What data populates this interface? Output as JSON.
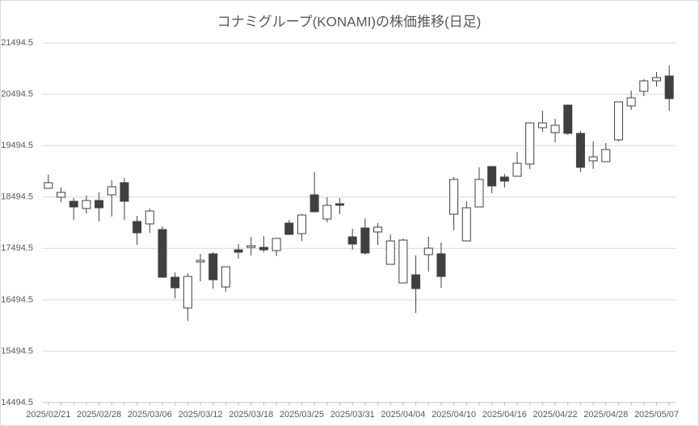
{
  "chart_data": {
    "type": "candlestick",
    "title": "コナミグループ(KONAMI)の株価推移(日足)",
    "categories": [
      "2025/02/21",
      null,
      null,
      null,
      "2025/02/28",
      null,
      null,
      null,
      "2025/03/06",
      null,
      null,
      null,
      "2025/03/12",
      null,
      null,
      null,
      "2025/03/18",
      null,
      null,
      null,
      "2025/03/25",
      null,
      null,
      null,
      "2025/03/31",
      null,
      null,
      null,
      "2025/04/04",
      null,
      null,
      null,
      "2025/04/10",
      null,
      null,
      null,
      "2025/04/16",
      null,
      null,
      null,
      "2025/04/22",
      null,
      null,
      null,
      "2025/04/28",
      null,
      null,
      null,
      "2025/05/07",
      null
    ],
    "open": [
      18663,
      18490,
      18411,
      18270,
      18427,
      18537,
      18773,
      18018,
      17971,
      17861,
      16933,
      16335,
      17231,
      17389,
      16744,
      17467,
      17515,
      17515,
      17452,
      17987,
      17782,
      18537,
      18065,
      18364,
      17719,
      17892,
      17814,
      17184,
      16822,
      16980,
      17373,
      17389,
      18160,
      17640,
      18301,
      19088,
      18883,
      18899,
      19135,
      19843,
      19748,
      20283,
      19733,
      19198,
      19182,
      19607,
      20267,
      20551,
      20755,
      20849
    ],
    "high": [
      18930,
      18679,
      18474,
      18521,
      18584,
      18820,
      18867,
      18128,
      18270,
      17924,
      17027,
      17011,
      17389,
      17420,
      17137,
      17578,
      17719,
      17735,
      17688,
      18049,
      18160,
      18978,
      18490,
      18474,
      17876,
      18081,
      17987,
      17766,
      17688,
      17357,
      17719,
      17609,
      18883,
      18411,
      19072,
      19088,
      18946,
      19371,
      19937,
      20173,
      20016,
      20283,
      19780,
      19575,
      19544,
      20346,
      20566,
      20786,
      20928,
      21054
    ],
    "low": [
      18663,
      18395,
      18049,
      18175,
      18018,
      18112,
      18049,
      17562,
      17798,
      16933,
      16524,
      16083,
      16854,
      16712,
      16649,
      17294,
      17357,
      17420,
      17342,
      17766,
      17640,
      18207,
      18002,
      18160,
      17467,
      17373,
      17562,
      17184,
      16822,
      16240,
      17043,
      16728,
      17845,
      17640,
      18301,
      18569,
      18679,
      18899,
      19040,
      19764,
      19560,
      19701,
      18978,
      19040,
      19182,
      19575,
      20189,
      20456,
      20645,
      20173
    ],
    "close": [
      18773,
      18584,
      18301,
      18427,
      18285,
      18694,
      18411,
      17798,
      18222,
      16933,
      16728,
      16948,
      17263,
      16885,
      17137,
      17420,
      17546,
      17467,
      17688,
      17766,
      18144,
      18207,
      18333,
      18333,
      17578,
      17405,
      17908,
      17640,
      17656,
      16712,
      17499,
      16948,
      18836,
      18285,
      18836,
      18710,
      18804,
      19151,
      19937,
      19937,
      19890,
      19733,
      19072,
      19276,
      19418,
      20346,
      20425,
      20755,
      20818,
      20409
    ],
    "up_color": "#ffffff",
    "down_color": "#404040",
    "outline_color": "#404040",
    "ylim": [
      14494.5,
      21494.5
    ],
    "yticks": [
      14494.5,
      15494.5,
      16494.5,
      17494.5,
      18494.5,
      19494.5,
      20494.5,
      21494.5
    ],
    "grid": true
  }
}
